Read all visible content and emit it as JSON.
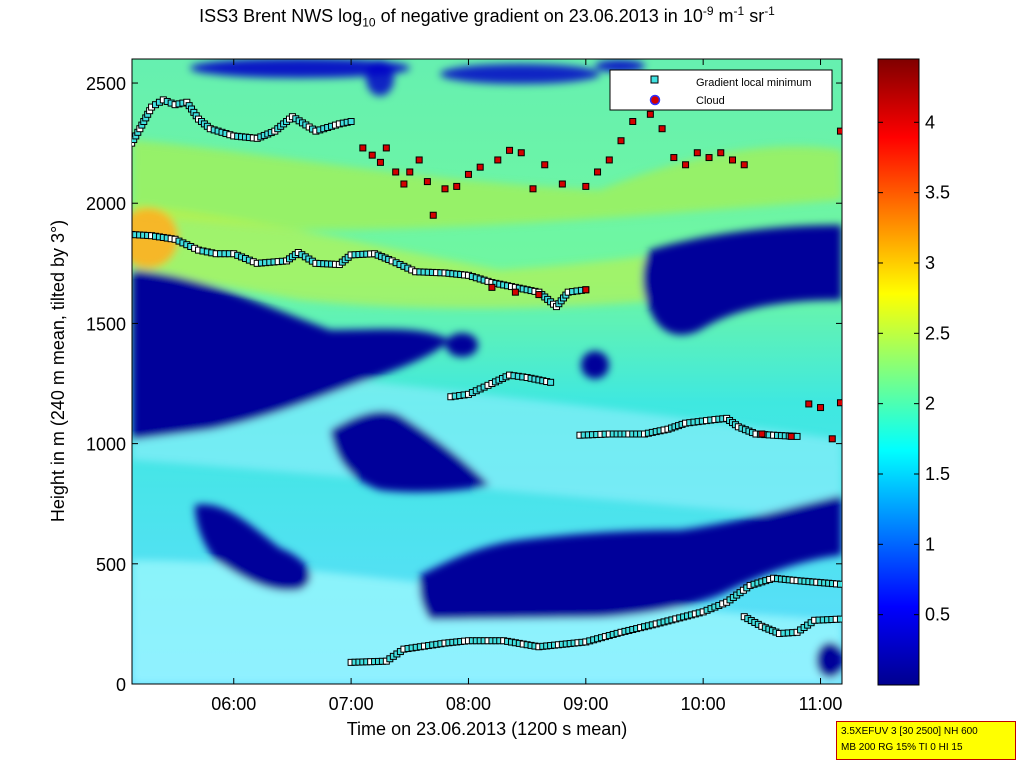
{
  "title": {
    "prefix": "ISS3 Brent NWS log",
    "sub": "10",
    "middle": " of negative gradient on 23.06.2013 in 10",
    "exp1": "-9",
    "unit1": " m",
    "exp2": "-1",
    "unit2": " sr",
    "exp3": "-1"
  },
  "chart_data": {
    "type": "heatmap",
    "xlabel": "Time on 23.06.2013 (1200 s mean)",
    "ylabel": "Height in m (240 m mean, tilted by 3°)",
    "xlim_hours": [
      5.133,
      11.183
    ],
    "ylim": [
      0,
      2600
    ],
    "x_ticks": [
      {
        "h": 6,
        "label": "06:00"
      },
      {
        "h": 7,
        "label": "07:00"
      },
      {
        "h": 8,
        "label": "08:00"
      },
      {
        "h": 9,
        "label": "09:00"
      },
      {
        "h": 10,
        "label": "10:00"
      },
      {
        "h": 11,
        "label": "11:00"
      }
    ],
    "y_ticks": [
      {
        "v": 0,
        "label": "0"
      },
      {
        "v": 500,
        "label": "500"
      },
      {
        "v": 1000,
        "label": "1000"
      },
      {
        "v": 1500,
        "label": "1500"
      },
      {
        "v": 2000,
        "label": "2000"
      },
      {
        "v": 2500,
        "label": "2500"
      }
    ],
    "colorbar": {
      "min": 0,
      "max": 4.45,
      "ticks": [
        "0.5",
        "1",
        "1.5",
        "2",
        "2.5",
        "3",
        "3.5",
        "4"
      ],
      "tick_values": [
        0.5,
        1,
        1.5,
        2,
        2.5,
        3,
        3.5,
        4
      ],
      "colormap": "jet"
    },
    "legend": {
      "position": "top-right",
      "entries": [
        "Gradient local minimum",
        "Cloud"
      ]
    },
    "series": [
      {
        "name": "Gradient local minimum",
        "marker": "square",
        "color": "#40e0e0",
        "segments": [
          [
            [
              5.13,
              1870
            ],
            [
              5.3,
              1865
            ],
            [
              5.5,
              1850
            ],
            [
              5.7,
              1805
            ],
            [
              5.85,
              1790
            ],
            [
              6.0,
              1790
            ],
            [
              6.2,
              1750
            ],
            [
              6.45,
              1760
            ],
            [
              6.55,
              1795
            ],
            [
              6.7,
              1750
            ],
            [
              6.9,
              1745
            ],
            [
              7.0,
              1785
            ],
            [
              7.2,
              1790
            ],
            [
              7.35,
              1760
            ],
            [
              7.55,
              1715
            ],
            [
              7.8,
              1710
            ],
            [
              8.0,
              1700
            ],
            [
              8.2,
              1670
            ],
            [
              8.4,
              1650
            ],
            [
              8.6,
              1630
            ],
            [
              8.75,
              1570
            ],
            [
              8.85,
              1630
            ],
            [
              9.0,
              1640
            ]
          ],
          [
            [
              7.0,
              90
            ],
            [
              7.3,
              95
            ],
            [
              7.45,
              145
            ],
            [
              7.8,
              170
            ],
            [
              8.0,
              180
            ],
            [
              8.3,
              180
            ],
            [
              8.6,
              155
            ],
            [
              9.0,
              175
            ],
            [
              9.3,
              215
            ],
            [
              9.6,
              250
            ],
            [
              10.0,
              300
            ],
            [
              10.2,
              340
            ],
            [
              10.4,
              410
            ],
            [
              10.6,
              440
            ],
            [
              10.8,
              430
            ],
            [
              11.17,
              415
            ]
          ],
          [
            [
              10.35,
              280
            ],
            [
              10.5,
              240
            ],
            [
              10.65,
              210
            ],
            [
              10.8,
              215
            ],
            [
              10.95,
              265
            ],
            [
              11.17,
              270
            ]
          ],
          [
            [
              7.85,
              1195
            ],
            [
              8.0,
              1205
            ],
            [
              8.2,
              1250
            ],
            [
              8.35,
              1285
            ],
            [
              8.5,
              1275
            ],
            [
              8.7,
              1255
            ]
          ],
          [
            [
              8.95,
              1035
            ],
            [
              9.2,
              1040
            ],
            [
              9.5,
              1040
            ],
            [
              9.7,
              1060
            ],
            [
              9.85,
              1085
            ],
            [
              10.1,
              1100
            ],
            [
              10.2,
              1105
            ],
            [
              10.3,
              1070
            ],
            [
              10.45,
              1040
            ],
            [
              10.6,
              1035
            ],
            [
              10.8,
              1030
            ]
          ],
          [
            [
              5.13,
              2250
            ],
            [
              5.2,
              2310
            ],
            [
              5.3,
              2400
            ],
            [
              5.4,
              2430
            ],
            [
              5.5,
              2410
            ],
            [
              5.6,
              2420
            ],
            [
              5.7,
              2350
            ],
            [
              5.8,
              2310
            ],
            [
              6.0,
              2280
            ],
            [
              6.2,
              2270
            ],
            [
              6.35,
              2300
            ],
            [
              6.5,
              2360
            ],
            [
              6.7,
              2300
            ],
            [
              6.9,
              2330
            ],
            [
              7.0,
              2340
            ]
          ]
        ]
      },
      {
        "name": "Cloud",
        "marker": "square",
        "color": "#d40000",
        "points": [
          [
            7.1,
            2230
          ],
          [
            7.18,
            2200
          ],
          [
            7.25,
            2170
          ],
          [
            7.3,
            2230
          ],
          [
            7.38,
            2130
          ],
          [
            7.45,
            2080
          ],
          [
            7.5,
            2130
          ],
          [
            7.58,
            2180
          ],
          [
            7.65,
            2090
          ],
          [
            7.7,
            1950
          ],
          [
            7.8,
            2060
          ],
          [
            7.9,
            2070
          ],
          [
            8.0,
            2120
          ],
          [
            8.1,
            2150
          ],
          [
            8.25,
            2180
          ],
          [
            8.35,
            2220
          ],
          [
            8.45,
            2210
          ],
          [
            8.55,
            2060
          ],
          [
            8.65,
            2160
          ],
          [
            8.8,
            2080
          ],
          [
            9.0,
            2070
          ],
          [
            9.1,
            2130
          ],
          [
            9.2,
            2180
          ],
          [
            9.3,
            2260
          ],
          [
            9.4,
            2340
          ],
          [
            9.55,
            2370
          ],
          [
            9.65,
            2310
          ],
          [
            9.75,
            2190
          ],
          [
            9.85,
            2160
          ],
          [
            9.95,
            2210
          ],
          [
            10.05,
            2190
          ],
          [
            10.15,
            2210
          ],
          [
            10.25,
            2180
          ],
          [
            10.35,
            2160
          ],
          [
            8.2,
            1650
          ],
          [
            8.4,
            1630
          ],
          [
            8.6,
            1620
          ],
          [
            9.0,
            1640
          ],
          [
            10.5,
            1040
          ],
          [
            10.75,
            1030
          ],
          [
            10.9,
            1165
          ],
          [
            11.0,
            1150
          ],
          [
            11.1,
            1020
          ],
          [
            11.17,
            1170
          ],
          [
            11.17,
            2300
          ]
        ]
      }
    ]
  },
  "info_box": {
    "line1": "3.5XEFUV 3 [30 2500] NH 600",
    "line2": "MB 200 RG 15% TI 0 HI 15"
  },
  "colors": {
    "axis": "#000000",
    "legend_min_marker": "#40e0e0",
    "legend_cloud_marker": "#d40000",
    "info_box_bg": "#ffff00"
  }
}
